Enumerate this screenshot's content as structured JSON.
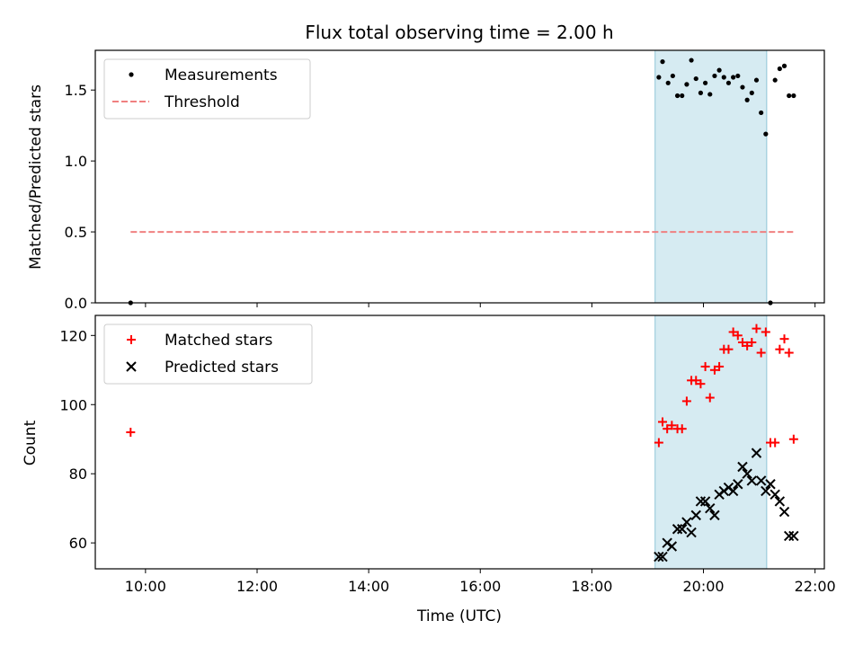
{
  "title": "Flux total observing time = 2.00 h",
  "chart_data": [
    {
      "type": "scatter",
      "ylabel": "Matched/Predicted stars",
      "xlim": [
        "09:06",
        "22:10"
      ],
      "ylim": [
        0,
        1.78
      ],
      "yticks": [
        "0.0",
        "0.5",
        "1.0",
        "1.5"
      ],
      "ytick_values": [
        0,
        0.5,
        1.0,
        1.5
      ],
      "legend": "top-left",
      "observing_window": {
        "start": "19:08",
        "end": "21:08"
      },
      "series": [
        {
          "name": "Measurements",
          "marker": "dot",
          "color": "#000000",
          "x": [
            "09:44",
            "19:12",
            "19:16",
            "19:22",
            "19:27",
            "19:32",
            "19:37",
            "19:42",
            "19:47",
            "19:52",
            "19:57",
            "20:02",
            "20:07",
            "20:12",
            "20:17",
            "20:22",
            "20:27",
            "20:32",
            "20:37",
            "20:42",
            "20:47",
            "20:52",
            "20:57",
            "21:02",
            "21:07",
            "21:12",
            "21:17",
            "21:22",
            "21:27",
            "21:32",
            "21:37"
          ],
          "y": [
            0.0,
            1.59,
            1.7,
            1.55,
            1.6,
            1.46,
            1.46,
            1.54,
            1.71,
            1.58,
            1.48,
            1.55,
            1.47,
            1.6,
            1.64,
            1.59,
            1.55,
            1.59,
            1.6,
            1.52,
            1.43,
            1.48,
            1.57,
            1.34,
            1.19,
            0.0,
            1.57,
            1.65,
            1.67,
            1.46,
            1.46
          ]
        },
        {
          "name": "Threshold",
          "marker": "dashed-line",
          "color": "#f08080",
          "x": [
            "09:44",
            "21:37"
          ],
          "y": [
            0.5,
            0.5
          ]
        }
      ]
    },
    {
      "type": "scatter",
      "xlabel": "Time (UTC)",
      "ylabel": "Count",
      "xlim": [
        "09:06",
        "22:10"
      ],
      "ylim": [
        52.5,
        125.8
      ],
      "xticks": [
        "10:00",
        "12:00",
        "14:00",
        "16:00",
        "18:00",
        "20:00",
        "22:00"
      ],
      "yticks": [
        "60",
        "80",
        "100",
        "120"
      ],
      "ytick_values": [
        60,
        80,
        100,
        120
      ],
      "legend": "top-left",
      "observing_window": {
        "start": "19:08",
        "end": "21:08"
      },
      "series": [
        {
          "name": "Matched stars",
          "marker": "plus",
          "color": "#ff0000",
          "x": [
            "09:44",
            "19:12",
            "19:16",
            "19:21",
            "19:26",
            "19:32",
            "19:37",
            "19:42",
            "19:47",
            "19:52",
            "19:57",
            "20:02",
            "20:07",
            "20:12",
            "20:17",
            "20:22",
            "20:27",
            "20:32",
            "20:37",
            "20:42",
            "20:47",
            "20:52",
            "20:57",
            "21:02",
            "21:07",
            "21:12",
            "21:17",
            "21:22",
            "21:27",
            "21:32",
            "21:37"
          ],
          "y": [
            92,
            89,
            95,
            93,
            94,
            93,
            93,
            101,
            107,
            107,
            106,
            111,
            102,
            110,
            111,
            116,
            116,
            121,
            120,
            118,
            117,
            118,
            122,
            115,
            121,
            89,
            89,
            116,
            119,
            115,
            90
          ]
        },
        {
          "name": "Predicted stars",
          "marker": "x",
          "color": "#000000",
          "x": [
            "19:12",
            "19:16",
            "19:21",
            "19:26",
            "19:32",
            "19:37",
            "19:42",
            "19:47",
            "19:52",
            "19:57",
            "20:02",
            "20:07",
            "20:12",
            "20:17",
            "20:22",
            "20:27",
            "20:32",
            "20:37",
            "20:42",
            "20:47",
            "20:52",
            "20:57",
            "21:02",
            "21:07",
            "21:12",
            "21:17",
            "21:22",
            "21:27",
            "21:32",
            "21:37"
          ],
          "y": [
            56,
            56,
            60,
            59,
            64,
            64,
            66,
            63,
            68,
            72,
            72,
            70,
            68,
            74,
            75,
            76,
            75,
            77,
            82,
            80,
            78,
            86,
            78,
            75,
            77,
            74,
            72,
            69,
            62,
            62
          ]
        }
      ]
    }
  ]
}
